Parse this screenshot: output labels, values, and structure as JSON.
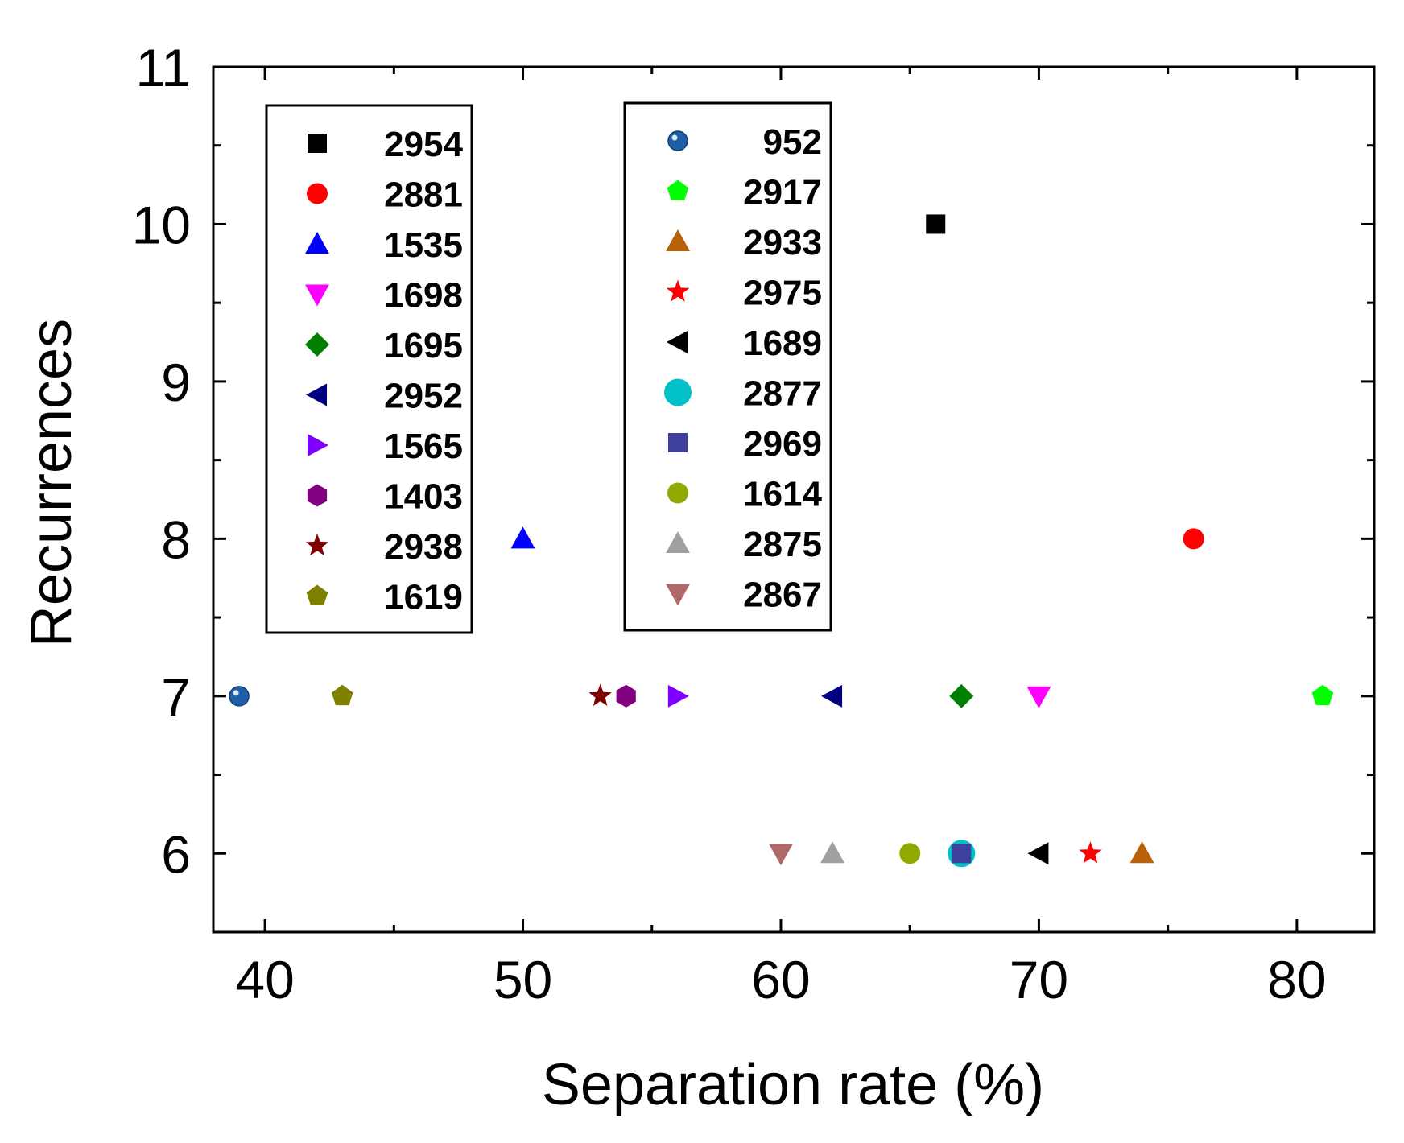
{
  "chart_data": {
    "type": "scatter",
    "title": "",
    "xlabel": "Separation rate (%)",
    "ylabel": "Recurrences",
    "xlim": [
      38,
      83
    ],
    "ylim": [
      5.5,
      11
    ],
    "xticks": [
      40,
      50,
      60,
      70,
      80
    ],
    "xtick_labels": [
      "40",
      "50",
      "60",
      "70",
      "80"
    ],
    "yticks": [
      6,
      7,
      8,
      9,
      10,
      11
    ],
    "ytick_labels": [
      "6",
      "7",
      "8",
      "9",
      "10",
      "11"
    ],
    "legend_placement": "upper-left, two boxes",
    "series": [
      {
        "name": "2954",
        "marker": "square",
        "color": "#000000",
        "x": 66,
        "y": 10,
        "legend": 0
      },
      {
        "name": "2881",
        "marker": "circle",
        "color": "#ff0000",
        "x": 76,
        "y": 8,
        "legend": 0
      },
      {
        "name": "1535",
        "marker": "triangle-up",
        "color": "#0000ff",
        "x": 50,
        "y": 8,
        "legend": 0
      },
      {
        "name": "1698",
        "marker": "triangle-down",
        "color": "#ff00ff",
        "x": 70,
        "y": 7,
        "legend": 0
      },
      {
        "name": "1695",
        "marker": "diamond",
        "color": "#008000",
        "x": 67,
        "y": 7,
        "legend": 0
      },
      {
        "name": "2952",
        "marker": "triangle-left",
        "color": "#000080",
        "x": 62,
        "y": 7,
        "legend": 0
      },
      {
        "name": "1565",
        "marker": "triangle-right",
        "color": "#8000ff",
        "x": 56,
        "y": 7,
        "legend": 0
      },
      {
        "name": "1403",
        "marker": "hexagon",
        "color": "#800080",
        "x": 54,
        "y": 7,
        "legend": 0
      },
      {
        "name": "2938",
        "marker": "star",
        "color": "#800000",
        "x": 53,
        "y": 7,
        "legend": 0
      },
      {
        "name": "1619",
        "marker": "pentagon",
        "color": "#808000",
        "x": 43,
        "y": 7,
        "legend": 0
      },
      {
        "name": "952",
        "marker": "sphere",
        "color": "#1f5fa8",
        "x": 39,
        "y": 7,
        "legend": 1
      },
      {
        "name": "2917",
        "marker": "pentagon",
        "color": "#00ff00",
        "x": 81,
        "y": 7,
        "legend": 1
      },
      {
        "name": "2933",
        "marker": "triangle-up",
        "color": "#b8620a",
        "x": 74,
        "y": 6,
        "legend": 1
      },
      {
        "name": "2975",
        "marker": "star",
        "color": "#ff0000",
        "x": 72,
        "y": 6,
        "legend": 1
      },
      {
        "name": "1689",
        "marker": "triangle-left",
        "color": "#000000",
        "x": 70,
        "y": 6,
        "legend": 1
      },
      {
        "name": "2877",
        "marker": "circle-large",
        "color": "#00c0c8",
        "x": 67,
        "y": 6,
        "legend": 1
      },
      {
        "name": "2969",
        "marker": "square",
        "color": "#3f3fa0",
        "x": 67,
        "y": 6,
        "legend": 1
      },
      {
        "name": "1614",
        "marker": "circle",
        "color": "#90a800",
        "x": 65,
        "y": 6,
        "legend": 1
      },
      {
        "name": "2875",
        "marker": "triangle-up",
        "color": "#a0a0a0",
        "x": 62,
        "y": 6,
        "legend": 1
      },
      {
        "name": "2867",
        "marker": "triangle-down",
        "color": "#b06868",
        "x": 60,
        "y": 6,
        "legend": 1
      }
    ]
  }
}
